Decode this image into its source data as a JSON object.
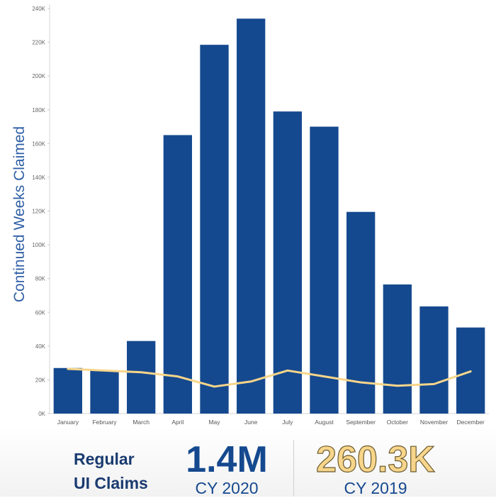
{
  "chart_data": {
    "type": "bar",
    "title": "",
    "xlabel": "",
    "ylabel": "Continued Weeks Claimed",
    "ylim": [
      0,
      240000
    ],
    "yticks": [
      0,
      20000,
      40000,
      60000,
      80000,
      100000,
      120000,
      140000,
      160000,
      180000,
      200000,
      220000,
      240000
    ],
    "ytick_labels": [
      "0K",
      "20K",
      "40K",
      "60K",
      "80K",
      "100K",
      "120K",
      "140K",
      "160K",
      "180K",
      "200K",
      "220K",
      "240K"
    ],
    "categories": [
      "January",
      "February",
      "March",
      "April",
      "May",
      "June",
      "July",
      "August",
      "September",
      "October",
      "November",
      "December"
    ],
    "series": [
      {
        "type": "bar",
        "color": "#15498f",
        "values": [
          27000,
          25500,
          43000,
          165000,
          218500,
          234000,
          179000,
          170000,
          119500,
          76500,
          63500,
          51000
        ]
      },
      {
        "type": "line",
        "color": "#f7d58a",
        "values": [
          26500,
          25500,
          24500,
          22000,
          16000,
          19000,
          25500,
          22000,
          18500,
          16500,
          17500,
          25000
        ]
      }
    ],
    "grid": false
  },
  "summary": {
    "label_line1": "Regular",
    "label_line2": "UI Claims",
    "value_2020": "1.4M",
    "year_2020": "CY 2020",
    "value_2019": "260.3K",
    "year_2019": "CY 2019"
  }
}
